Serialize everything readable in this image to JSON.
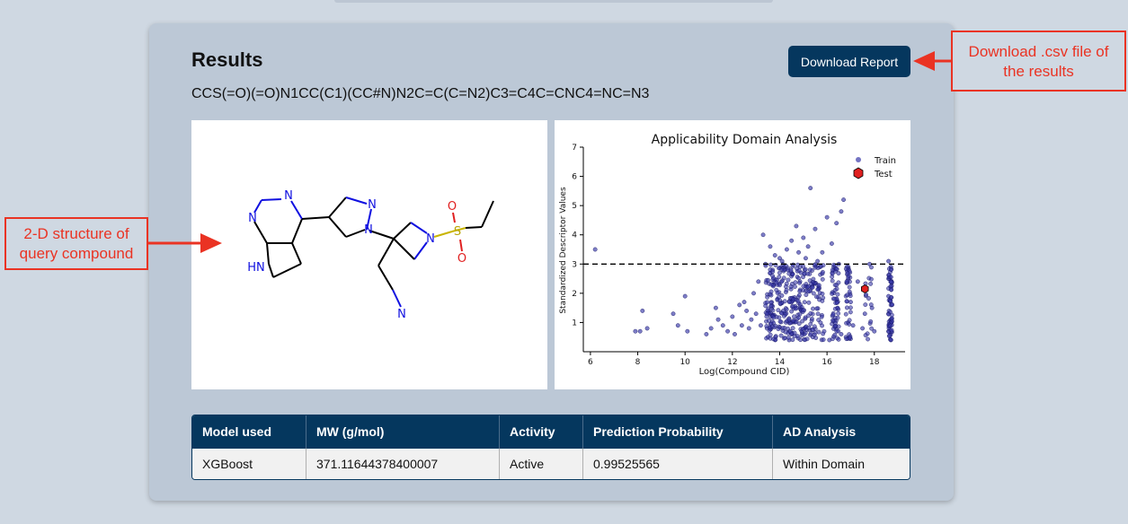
{
  "panel": {
    "title": "Results",
    "smiles": "CCS(=O)(=O)N1CC(C1)(CC#N)N2C=C(C=N2)C3=C4C=CNC4=NC=N3",
    "download_label": "Download Report"
  },
  "annotations": {
    "structure_line1": "2-D structure of",
    "structure_line2": "query compound",
    "download_line1": "Download .csv file of",
    "download_line2": "the results"
  },
  "structure_atoms": {
    "N": "N",
    "NH": "HN",
    "S": "S",
    "O": "O"
  },
  "colors": {
    "accent": "#05375e",
    "annotation": "#ea3323",
    "train_point": "#3838a8",
    "test_point": "#e02020"
  },
  "chart_data": {
    "type": "scatter",
    "title": "Applicability Domain Analysis",
    "xlabel": "Log(Compound CID)",
    "ylabel": "Standardized Descriptor Values",
    "xlim": [
      5.7,
      19.3
    ],
    "ylim": [
      0,
      7
    ],
    "xticks": [
      "6",
      "8",
      "10",
      "12",
      "14",
      "16",
      "18"
    ],
    "yticks": [
      "1",
      "2",
      "3",
      "4",
      "5",
      "6",
      "7"
    ],
    "threshold": 3,
    "legend": [
      "Train",
      "Test"
    ],
    "legend_position": "top-right",
    "series": [
      {
        "name": "Train",
        "points": [
          [
            6.2,
            3.5
          ],
          [
            7.9,
            0.7
          ],
          [
            8.1,
            0.7
          ],
          [
            8.2,
            1.4
          ],
          [
            8.4,
            0.8
          ],
          [
            9.5,
            1.3
          ],
          [
            9.7,
            0.9
          ],
          [
            10.0,
            1.9
          ],
          [
            10.1,
            0.7
          ],
          [
            10.9,
            0.6
          ],
          [
            11.1,
            0.8
          ],
          [
            11.3,
            1.5
          ],
          [
            11.4,
            1.1
          ],
          [
            11.6,
            0.9
          ],
          [
            11.8,
            0.7
          ],
          [
            12.0,
            1.2
          ],
          [
            12.1,
            0.6
          ],
          [
            12.3,
            1.6
          ],
          [
            12.4,
            0.9
          ],
          [
            12.5,
            1.7
          ],
          [
            12.6,
            1.4
          ],
          [
            12.7,
            0.8
          ],
          [
            12.8,
            1.1
          ],
          [
            12.9,
            2.0
          ],
          [
            13.0,
            1.3
          ],
          [
            13.1,
            2.4
          ],
          [
            13.2,
            0.9
          ],
          [
            13.3,
            4.0
          ],
          [
            13.6,
            3.6
          ],
          [
            13.8,
            3.3
          ],
          [
            14.0,
            3.2
          ],
          [
            14.1,
            3.1
          ],
          [
            14.3,
            3.5
          ],
          [
            14.5,
            3.8
          ],
          [
            14.7,
            4.3
          ],
          [
            14.8,
            3.4
          ],
          [
            15.0,
            3.9
          ],
          [
            15.1,
            3.2
          ],
          [
            15.2,
            3.6
          ],
          [
            15.3,
            5.6
          ],
          [
            15.5,
            4.2
          ],
          [
            15.6,
            3.1
          ],
          [
            15.8,
            3.4
          ],
          [
            16.0,
            4.6
          ],
          [
            16.2,
            3.7
          ],
          [
            16.4,
            4.4
          ],
          [
            16.6,
            4.8
          ],
          [
            16.7,
            5.2
          ],
          [
            17.0,
            1.7
          ],
          [
            17.1,
            0.9
          ],
          [
            17.5,
            0.8
          ],
          [
            17.8,
            3.0
          ],
          [
            17.9,
            1.5
          ],
          [
            18.0,
            0.7
          ],
          [
            17.6,
            1.3
          ],
          [
            16.8,
            0.5
          ],
          [
            17.3,
            2.4
          ],
          [
            13.4,
            3.0
          ],
          [
            13.7,
            2.8
          ],
          [
            14.2,
            2.9
          ],
          [
            14.9,
            2.7
          ],
          [
            15.7,
            2.9
          ],
          [
            16.3,
            2.8
          ],
          [
            16.5,
            3.0
          ],
          [
            16.9,
            2.9
          ],
          [
            18.6,
            3.1
          ],
          [
            18.7,
            2.9
          ],
          [
            18.6,
            2.5
          ],
          [
            18.7,
            2.2
          ],
          [
            18.6,
            1.9
          ],
          [
            18.7,
            1.6
          ],
          [
            18.6,
            1.3
          ],
          [
            18.7,
            1.0
          ],
          [
            18.6,
            0.7
          ],
          [
            18.7,
            0.4
          ],
          [
            13.5,
            0.5
          ],
          [
            14.4,
            0.4
          ],
          [
            15.4,
            0.5
          ],
          [
            16.1,
            0.4
          ],
          [
            16.6,
            0.6
          ],
          [
            13.9,
            1.8
          ]
        ]
      },
      {
        "name": "Test",
        "points": [
          [
            17.6,
            2.15
          ]
        ]
      }
    ]
  },
  "table": {
    "headers": [
      "Model used",
      "MW (g/mol)",
      "Activity",
      "Prediction Probability",
      "AD Analysis"
    ],
    "row": [
      "XGBoost",
      "371.11644378400007",
      "Active",
      "0.99525565",
      "Within Domain"
    ]
  }
}
